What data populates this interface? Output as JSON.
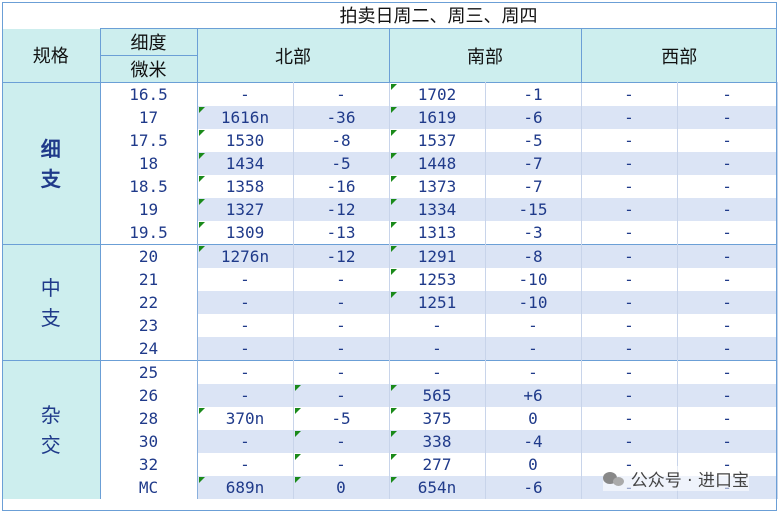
{
  "title": "拍卖日周二、周三、周四",
  "headers": {
    "spec": "规格",
    "fineness_line1": "细度",
    "fineness_line2": "微米",
    "north": "北部",
    "south": "南部",
    "west": "西部"
  },
  "categories": [
    {
      "name_line1": "细",
      "name_line2": "支",
      "bold": true,
      "rows": 7
    },
    {
      "name_line1": "中",
      "name_line2": "支",
      "bold": false,
      "rows": 5
    },
    {
      "name_line1": "杂",
      "name_line2": "交",
      "bold": false,
      "rows": 6
    }
  ],
  "rows": [
    {
      "micron": "16.5",
      "north_price": "-",
      "north_change": "-",
      "south_price": "1702",
      "south_change": "-1",
      "west_price": "-",
      "west_change": "-",
      "flags": [
        3
      ]
    },
    {
      "micron": "17",
      "north_price": "1616n",
      "north_change": "-36",
      "south_price": "1619",
      "south_change": "-6",
      "west_price": "-",
      "west_change": "-",
      "flags": [
        1,
        3
      ]
    },
    {
      "micron": "17.5",
      "north_price": "1530",
      "north_change": "-8",
      "south_price": "1537",
      "south_change": "-5",
      "west_price": "-",
      "west_change": "-",
      "flags": [
        1,
        3
      ]
    },
    {
      "micron": "18",
      "north_price": "1434",
      "north_change": "-5",
      "south_price": "1448",
      "south_change": "-7",
      "west_price": "-",
      "west_change": "-",
      "flags": [
        1,
        3
      ]
    },
    {
      "micron": "18.5",
      "north_price": "1358",
      "north_change": "-16",
      "south_price": "1373",
      "south_change": "-7",
      "west_price": "-",
      "west_change": "-",
      "flags": [
        1,
        3
      ]
    },
    {
      "micron": "19",
      "north_price": "1327",
      "north_change": "-12",
      "south_price": "1334",
      "south_change": "-15",
      "west_price": "-",
      "west_change": "-",
      "flags": [
        1,
        3
      ]
    },
    {
      "micron": "19.5",
      "north_price": "1309",
      "north_change": "-13",
      "south_price": "1313",
      "south_change": "-3",
      "west_price": "-",
      "west_change": "-",
      "flags": [
        1,
        3
      ]
    },
    {
      "micron": "20",
      "north_price": "1276n",
      "north_change": "-12",
      "south_price": "1291",
      "south_change": "-8",
      "west_price": "-",
      "west_change": "-",
      "flags": [
        1,
        3
      ]
    },
    {
      "micron": "21",
      "north_price": "-",
      "north_change": "-",
      "south_price": "1253",
      "south_change": "-10",
      "west_price": "-",
      "west_change": "-",
      "flags": [
        3
      ]
    },
    {
      "micron": "22",
      "north_price": "-",
      "north_change": "-",
      "south_price": "1251",
      "south_change": "-10",
      "west_price": "-",
      "west_change": "-",
      "flags": [
        3
      ]
    },
    {
      "micron": "23",
      "north_price": "-",
      "north_change": "-",
      "south_price": "-",
      "south_change": "-",
      "west_price": "-",
      "west_change": "-",
      "flags": []
    },
    {
      "micron": "24",
      "north_price": "-",
      "north_change": "-",
      "south_price": "-",
      "south_change": "-",
      "west_price": "-",
      "west_change": "-",
      "flags": []
    },
    {
      "micron": "25",
      "north_price": "-",
      "north_change": "-",
      "south_price": "-",
      "south_change": "-",
      "west_price": "-",
      "west_change": "-",
      "flags": []
    },
    {
      "micron": "26",
      "north_price": "-",
      "north_change": "-",
      "south_price": "565",
      "south_change": "+6",
      "west_price": "-",
      "west_change": "-",
      "flags": [
        2,
        3
      ]
    },
    {
      "micron": "28",
      "north_price": "370n",
      "north_change": "-5",
      "south_price": "375",
      "south_change": "0",
      "west_price": "-",
      "west_change": "-",
      "flags": [
        1,
        2,
        3
      ]
    },
    {
      "micron": "30",
      "north_price": "-",
      "north_change": "-",
      "south_price": "338",
      "south_change": "-4",
      "west_price": "-",
      "west_change": "-",
      "flags": [
        2,
        3
      ]
    },
    {
      "micron": "32",
      "north_price": "-",
      "north_change": "-",
      "south_price": "277",
      "south_change": "0",
      "west_price": "-",
      "west_change": "-",
      "flags": [
        2,
        3
      ]
    },
    {
      "micron": "MC",
      "north_price": "689n",
      "north_change": "0",
      "south_price": "654n",
      "south_change": "-6",
      "west_price": "-",
      "west_change": "-",
      "flags": [
        1,
        2,
        3
      ]
    }
  ],
  "watermark": {
    "icon": "wechat-icon",
    "text": "公众号 · 进口宝"
  }
}
